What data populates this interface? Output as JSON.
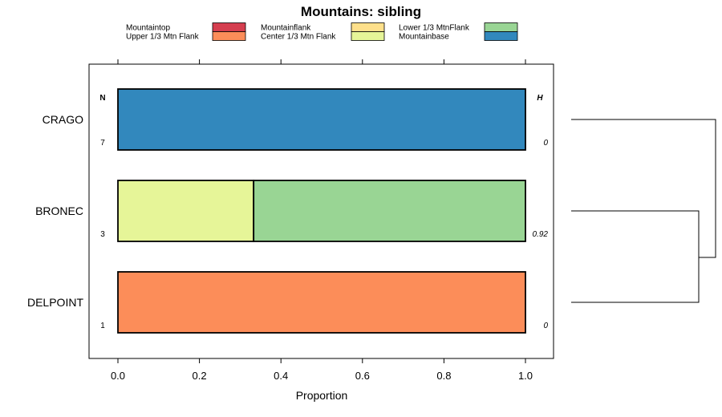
{
  "chart_data": {
    "type": "bar",
    "orientation": "horizontal",
    "stacked": true,
    "title": "Mountains: sibling",
    "xlabel": "Proportion",
    "xlim": [
      -0.07,
      1.07
    ],
    "xticks": [
      0.0,
      0.2,
      0.4,
      0.6,
      0.8,
      1.0
    ],
    "xtick_labels": [
      "0.0",
      "0.2",
      "0.4",
      "0.6",
      "0.8",
      "1.0"
    ],
    "legend_position": "top",
    "legend": [
      {
        "name": "Mountaintop",
        "color": "#d53e4f"
      },
      {
        "name": "Upper 1/3 Mtn Flank",
        "color": "#fc8d59"
      },
      {
        "name": "Mountainflank",
        "color": "#fee08b"
      },
      {
        "name": "Center 1/3 Mtn Flank",
        "color": "#e6f598"
      },
      {
        "name": "Lower 1/3 MtnFlank",
        "color": "#99d594"
      },
      {
        "name": "Mountainbase",
        "color": "#3288bd"
      }
    ],
    "categories": [
      "CRAGO",
      "BRONEC",
      "DELPOINT"
    ],
    "series": [
      {
        "name": "Mountaintop",
        "values": [
          0,
          0,
          0
        ]
      },
      {
        "name": "Upper 1/3 Mtn Flank",
        "values": [
          0,
          0,
          1
        ]
      },
      {
        "name": "Mountainflank",
        "values": [
          0,
          0,
          0
        ]
      },
      {
        "name": "Center 1/3 Mtn Flank",
        "values": [
          0,
          0.333,
          0
        ]
      },
      {
        "name": "Lower 1/3 MtnFlank",
        "values": [
          0,
          0.667,
          0
        ]
      },
      {
        "name": "Mountainbase",
        "values": [
          1,
          0,
          0
        ]
      }
    ],
    "n_header": "N",
    "n_values": [
      "7",
      "3",
      "1"
    ],
    "h_header": "H",
    "h_values": [
      "0",
      "0.92",
      "0"
    ],
    "dendrogram": "CRAGO joins (BRONEC, DELPOINT)"
  }
}
